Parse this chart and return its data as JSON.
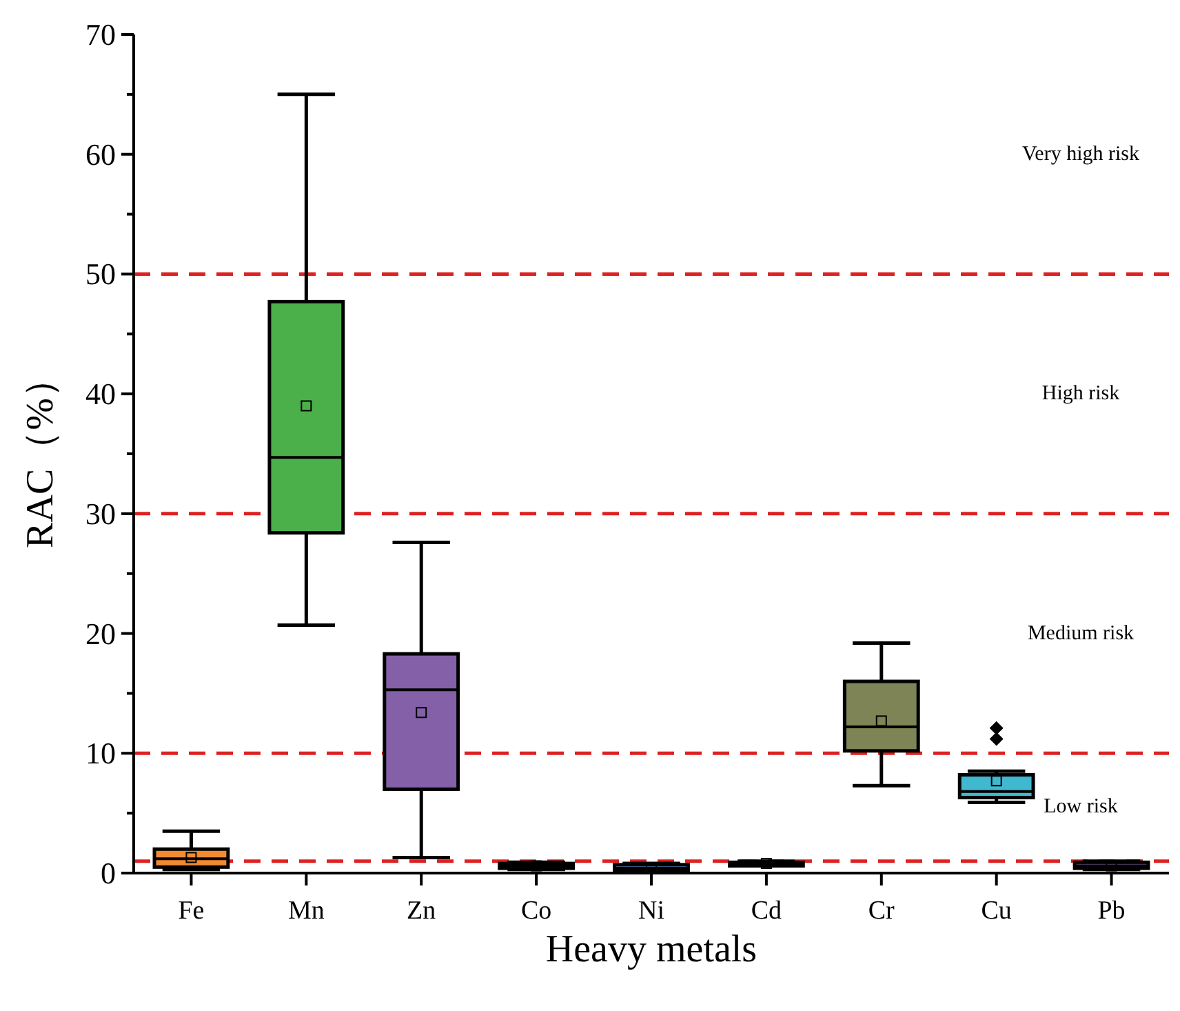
{
  "chart_data": {
    "type": "box",
    "xlabel": "Heavy metals",
    "ylabel": "RAC（%）",
    "categories": [
      "Fe",
      "Mn",
      "Zn",
      "Co",
      "Ni",
      "Cd",
      "Cr",
      "Cu",
      "Pb"
    ],
    "colors": [
      "#f28a30",
      "#4cb04a",
      "#8460a8",
      "#c0504d",
      "#4f81bd",
      "#9bbb59",
      "#7e8455",
      "#40b8d0",
      "#8064a2"
    ],
    "boxes": [
      {
        "low": 0.3,
        "q1": 0.5,
        "median": 1.2,
        "q3": 2.0,
        "high": 3.5,
        "mean": 1.3
      },
      {
        "low": 20.7,
        "q1": 28.4,
        "median": 34.7,
        "q3": 47.7,
        "high": 65,
        "mean": 39
      },
      {
        "low": 1.3,
        "q1": 7.0,
        "median": 15.3,
        "q3": 18.3,
        "high": 27.6,
        "mean": 13.4
      },
      {
        "low": 0.3,
        "q1": 0.4,
        "median": 0.6,
        "q3": 0.8,
        "high": 0.9,
        "mean": 0.6
      },
      {
        "low": 0.1,
        "q1": 0.2,
        "median": 0.4,
        "q3": 0.7,
        "high": 0.8,
        "mean": 0.4
      },
      {
        "low": 0.6,
        "q1": 0.6,
        "median": 0.8,
        "q3": 0.9,
        "high": 1.0,
        "mean": 0.8
      },
      {
        "low": 7.3,
        "q1": 10.2,
        "median": 12.2,
        "q3": 16.0,
        "high": 19.2,
        "mean": 12.7
      },
      {
        "low": 5.9,
        "q1": 6.3,
        "median": 6.8,
        "q3": 8.2,
        "high": 8.5,
        "mean": 7.7,
        "outliers": [
          11.2,
          12.1
        ]
      },
      {
        "low": 0.3,
        "q1": 0.4,
        "median": 0.6,
        "q3": 0.9,
        "high": 1.0,
        "mean": 0.6
      }
    ],
    "ylim": [
      0,
      70
    ],
    "yticks": [
      0,
      {
        "value": 5,
        "label": null
      },
      10,
      {
        "value": 15,
        "label": null
      },
      20,
      {
        "value": 25,
        "label": null
      },
      30,
      {
        "value": 35,
        "label": null
      },
      40,
      {
        "value": 45,
        "label": null
      },
      50,
      {
        "value": 55,
        "label": null
      },
      60,
      {
        "value": 65,
        "label": null
      },
      70
    ],
    "ref_lines": [
      {
        "axis": "y",
        "value": 1,
        "color": "#dd2222",
        "line_style": "dashed"
      },
      {
        "axis": "y",
        "value": 10,
        "color": "#dd2222",
        "line_style": "dashed"
      },
      {
        "axis": "y",
        "value": 30,
        "color": "#dd2222",
        "line_style": "dashed"
      },
      {
        "axis": "y",
        "value": 50,
        "color": "#dd2222",
        "line_style": "dashed"
      }
    ],
    "annotations": [
      "Very high risk",
      "High risk",
      "Medium risk",
      "Low risk"
    ],
    "grid": false
  }
}
